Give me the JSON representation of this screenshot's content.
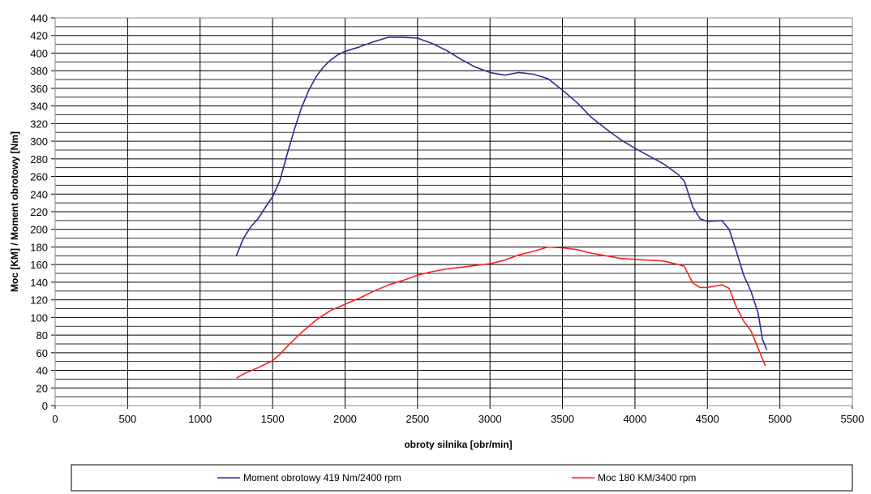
{
  "chart_data": {
    "type": "line",
    "title": "",
    "xlabel": "obroty silnika [obr/min]",
    "ylabel": "Moc [KM] / Moment obrotowy [Nm]",
    "xlim": [
      0,
      5500
    ],
    "ylim": [
      0,
      440
    ],
    "xticks": [
      0,
      500,
      1000,
      1500,
      2000,
      2500,
      3000,
      3500,
      4000,
      4500,
      5000,
      5500
    ],
    "yticks": [
      0,
      20,
      40,
      60,
      80,
      100,
      120,
      140,
      160,
      180,
      200,
      220,
      240,
      260,
      280,
      300,
      320,
      340,
      360,
      380,
      400,
      420,
      440
    ],
    "grid": true,
    "legend_position": "bottom",
    "series": [
      {
        "name": "Moment obrotowy 419 Nm/2400 rpm",
        "color": "#2b2f8f",
        "x": [
          1250,
          1300,
          1350,
          1400,
          1450,
          1500,
          1550,
          1600,
          1650,
          1700,
          1750,
          1800,
          1850,
          1900,
          1950,
          2000,
          2100,
          2200,
          2300,
          2400,
          2500,
          2600,
          2700,
          2800,
          2900,
          3000,
          3100,
          3200,
          3300,
          3400,
          3500,
          3600,
          3700,
          3800,
          3900,
          4000,
          4100,
          4200,
          4300,
          4340,
          4400,
          4450,
          4500,
          4600,
          4650,
          4700,
          4750,
          4800,
          4850,
          4880,
          4910
        ],
        "y": [
          170,
          190,
          203,
          212,
          225,
          237,
          255,
          285,
          313,
          338,
          358,
          373,
          384,
          392,
          398,
          402,
          407,
          413,
          418,
          418,
          417,
          411,
          403,
          393,
          384,
          378,
          375,
          378,
          376,
          371,
          358,
          344,
          327,
          314,
          302,
          292,
          283,
          274,
          262,
          255,
          225,
          212,
          209,
          210,
          200,
          175,
          148,
          130,
          105,
          75,
          63
        ]
      },
      {
        "name": "Moc 180 KM/3400 rpm",
        "color": "#ff2020",
        "x": [
          1250,
          1300,
          1400,
          1500,
          1550,
          1600,
          1700,
          1800,
          1900,
          2000,
          2100,
          2200,
          2300,
          2400,
          2500,
          2600,
          2700,
          2800,
          2900,
          3000,
          3100,
          3200,
          3300,
          3400,
          3500,
          3600,
          3700,
          3800,
          3900,
          4000,
          4100,
          4200,
          4300,
          4340,
          4400,
          4450,
          4500,
          4600,
          4650,
          4700,
          4750,
          4800,
          4850,
          4900
        ],
        "y": [
          31,
          36,
          43,
          51,
          58,
          67,
          83,
          97,
          108,
          115,
          122,
          130,
          137,
          142,
          148,
          152,
          155,
          157,
          159,
          161,
          165,
          171,
          175,
          180,
          179,
          177,
          173,
          170,
          167,
          166,
          165,
          164,
          160,
          158,
          139,
          134,
          134,
          137,
          133,
          112,
          96,
          85,
          65,
          45
        ]
      }
    ]
  }
}
